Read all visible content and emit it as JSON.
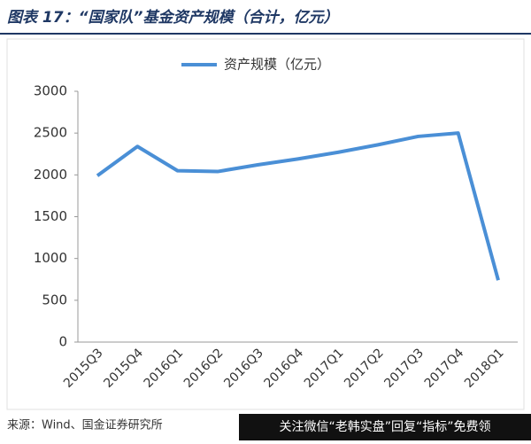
{
  "chart_data": {
    "type": "line",
    "title": "图表 17：“国家队”基金资产规模（合计，亿元）",
    "categories": [
      "2015Q3",
      "2015Q4",
      "2016Q1",
      "2016Q2",
      "2016Q3",
      "2016Q4",
      "2017Q1",
      "2017Q2",
      "2017Q3",
      "2017Q4",
      "2018Q1"
    ],
    "series": [
      {
        "name": "资产规模（亿元）",
        "color": "#4a8fd6",
        "values": [
          1990,
          2340,
          2050,
          2040,
          2120,
          2190,
          2270,
          2360,
          2460,
          2500,
          740
        ]
      }
    ],
    "ylim": [
      0,
      3000
    ],
    "yticks": [
      0,
      500,
      1000,
      1500,
      2000,
      2500,
      3000
    ],
    "grid": false,
    "legend": "top",
    "source": "来源：Wind、国金证券研究所",
    "annotation": "关注微信“老韩实盘”回复“指标”免费领"
  }
}
